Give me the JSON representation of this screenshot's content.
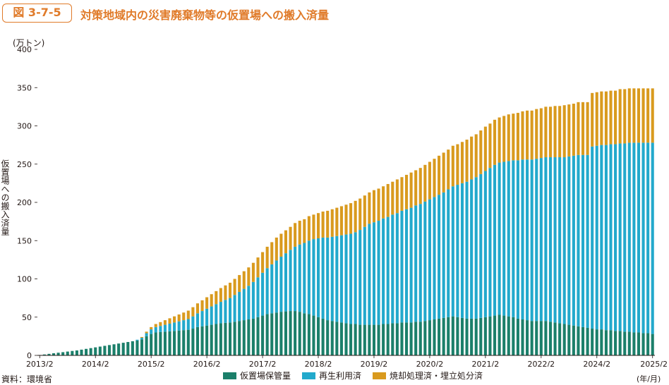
{
  "header": {
    "figure_number": "図 3-7-5",
    "title": "対策地域内の災害廃棄物等の仮置場への搬入済量"
  },
  "axis": {
    "y_unit": "(万トン)",
    "y_label": "仮置場への搬入済量",
    "x_unit": "(年/月)"
  },
  "source": "資料：環境省",
  "colors": {
    "storage": "#1b7f6a",
    "recycled": "#22a9cc",
    "incinerated": "#d99a1e",
    "title": "#e07b2a"
  },
  "chart_data": {
    "type": "bar",
    "stacked": true,
    "title": "対策地域内の災害廃棄物等の仮置場への搬入済量",
    "ylabel": "仮置場への搬入済量",
    "yunit": "(万トン)",
    "xunit": "(年/月)",
    "ylim": [
      0,
      400
    ],
    "yticks": [
      0,
      50,
      100,
      150,
      200,
      250,
      300,
      350,
      400
    ],
    "xtick_labels": [
      "2013/2",
      "2014/2",
      "2015/2",
      "2016/2",
      "2017/2",
      "2018/2",
      "2019/2",
      "2020/2",
      "2021/2",
      "2022/2",
      "2024/2",
      "2025/2"
    ],
    "xtick_bar_index": [
      0,
      12,
      24,
      36,
      48,
      60,
      72,
      84,
      96,
      108,
      120,
      132
    ],
    "legend": [
      "仮置場保管量",
      "再生利用済",
      "焼却処理済・埋立処分済"
    ],
    "series": [
      {
        "name": "仮置場保管量",
        "values": [
          0.5,
          1.2,
          2.0,
          2.8,
          3.5,
          4.2,
          5.0,
          5.8,
          6.5,
          7.5,
          8.5,
          9.5,
          10.5,
          11.5,
          12.5,
          13.5,
          14.5,
          15.5,
          16.5,
          17.5,
          18.5,
          19.5,
          21.0,
          25.0,
          28.0,
          30.0,
          30.5,
          31.0,
          31.5,
          32.0,
          32.5,
          33.0,
          33.5,
          35.0,
          37.0,
          38.0,
          39.0,
          40.0,
          41.0,
          42.0,
          42.5,
          43.0,
          44.0,
          45.0,
          46.0,
          47.0,
          48.0,
          50.0,
          52.0,
          54.0,
          55.0,
          56.0,
          57.0,
          57.5,
          58.0,
          58.0,
          57.0,
          55.0,
          54.0,
          52.0,
          50.0,
          48.0,
          46.0,
          45.0,
          44.0,
          43.0,
          42.0,
          41.0,
          41.0,
          40.0,
          40.0,
          40.0,
          40.0,
          40.0,
          41.0,
          41.0,
          42.0,
          42.0,
          43.0,
          43.0,
          43.0,
          44.0,
          44.0,
          45.0,
          46.0,
          47.0,
          48.0,
          49.0,
          50.0,
          51.0,
          50.0,
          49.0,
          48.0,
          48.0,
          48.0,
          49.0,
          50.0,
          51.0,
          52.0,
          53.0,
          52.0,
          51.0,
          50.0,
          48.0,
          47.0,
          46.0,
          45.0,
          45.0,
          45.0,
          45.0,
          44.0,
          43.0,
          42.0,
          41.0,
          40.0,
          39.0,
          38.0,
          37.0,
          36.0,
          35.0,
          34.0,
          34.0,
          33.0,
          33.0,
          32.0,
          32.0,
          31.0,
          31.0,
          30.0,
          30.0,
          29.0,
          29.0,
          28.0
        ]
      },
      {
        "name": "再生利用済",
        "values": [
          0,
          0,
          0,
          0,
          0,
          0,
          0,
          0,
          0,
          0,
          0,
          0,
          0,
          0,
          0,
          0,
          0,
          0,
          0,
          0,
          0,
          1.0,
          2.0,
          4.0,
          6.0,
          7.0,
          8.0,
          9.0,
          10.0,
          11.0,
          12.0,
          13.0,
          14.0,
          16.0,
          18.0,
          20.0,
          22.0,
          24.0,
          26.0,
          28.0,
          30.0,
          32.0,
          35.0,
          38.0,
          41.0,
          44.0,
          48.0,
          52.0,
          56.0,
          60.0,
          64.0,
          68.0,
          72.0,
          76.0,
          80.0,
          84.0,
          88.0,
          92.0,
          96.0,
          100.0,
          103.0,
          106.0,
          108.0,
          110.0,
          112.0,
          114.0,
          116.0,
          118.0,
          120.0,
          124.0,
          128.0,
          132.0,
          134.0,
          136.0,
          138.0,
          140.0,
          142.0,
          144.0,
          146.0,
          148.0,
          150.0,
          152.0,
          154.0,
          156.0,
          158.0,
          160.0,
          162.0,
          164.0,
          167.0,
          170.0,
          173.0,
          176.0,
          179.0,
          182.0,
          185.0,
          188.0,
          191.0,
          194.0,
          197.0,
          199.0,
          201.0,
          203.0,
          205.0,
          207.0,
          209.0,
          210.0,
          211.0,
          212.0,
          213.0,
          214.0,
          215.0,
          216.0,
          217.0,
          218.0,
          220.0,
          222.0,
          224.0,
          225.0,
          226.0,
          238.0,
          240.0,
          241.0,
          242.0,
          243.0,
          244.0,
          245.0,
          246.0,
          247.0,
          248.0,
          248.0,
          249.0,
          249.0,
          250.0
        ]
      },
      {
        "name": "焼却処理済・埋立処分済",
        "values": [
          0,
          0,
          0,
          0,
          0,
          0,
          0,
          0,
          0,
          0,
          0,
          0,
          0,
          0,
          0,
          0,
          0,
          0,
          0,
          0,
          0,
          0,
          1.0,
          2.0,
          3.0,
          4.0,
          5.0,
          6.0,
          7.0,
          8.0,
          9.0,
          10.0,
          11.0,
          12.0,
          13.0,
          14.0,
          15.0,
          16.0,
          17.0,
          18.0,
          19.0,
          20.0,
          21.0,
          22.0,
          23.0,
          24.0,
          25.0,
          26.0,
          27.0,
          28.0,
          29.0,
          30.0,
          30.0,
          30.0,
          30.0,
          31.0,
          31.0,
          31.0,
          32.0,
          32.0,
          33.0,
          34.0,
          35.0,
          36.0,
          37.0,
          38.0,
          39.0,
          40.0,
          41.0,
          41.0,
          41.0,
          41.0,
          42.0,
          42.0,
          42.0,
          43.0,
          43.0,
          44.0,
          44.0,
          45.0,
          46.0,
          46.0,
          47.0,
          48.0,
          49.0,
          50.0,
          51.0,
          52.0,
          52.0,
          53.0,
          53.0,
          54.0,
          55.0,
          56.0,
          56.0,
          57.0,
          58.0,
          58.0,
          59.0,
          59.0,
          60.0,
          61.0,
          61.0,
          62.0,
          63.0,
          64.0,
          64.0,
          65.0,
          65.0,
          66.0,
          66.0,
          67.0,
          67.0,
          68.0,
          68.0,
          68.0,
          69.0,
          69.0,
          69.0,
          70.0,
          70.0,
          70.0,
          70.0,
          70.0,
          70.0,
          71.0,
          71.0,
          71.0,
          71.0,
          71.0,
          71.0,
          71.0,
          71.0
        ]
      }
    ]
  }
}
